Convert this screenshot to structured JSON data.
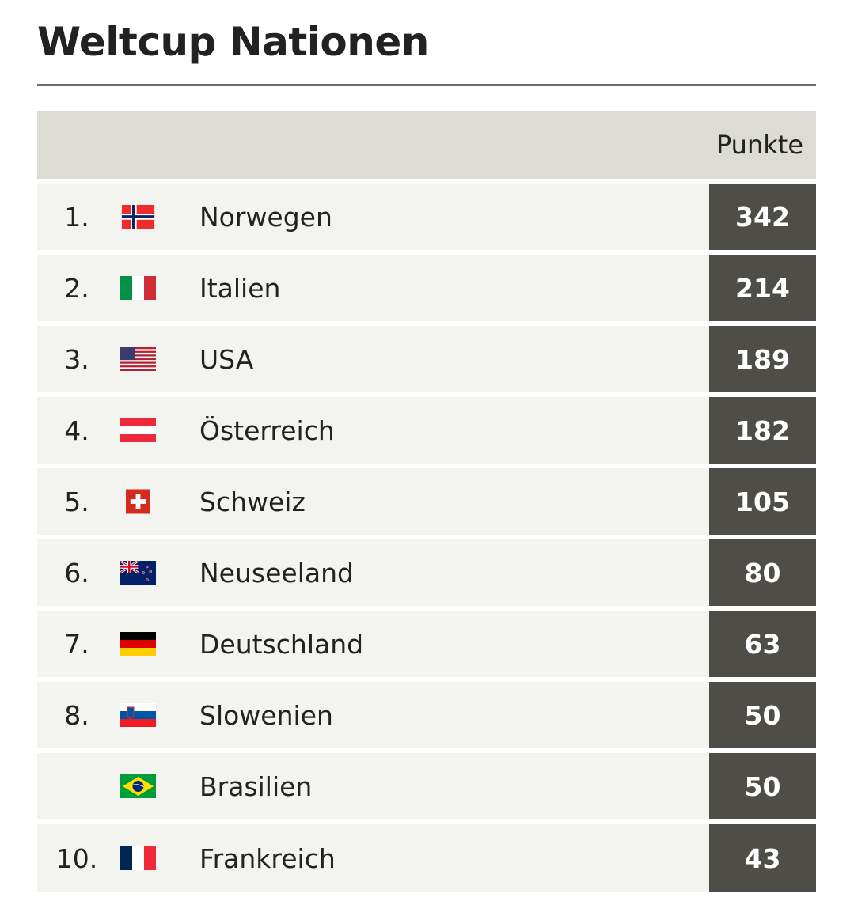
{
  "title": "Weltcup Nationen",
  "columns": {
    "points": "Punkte"
  },
  "rows": [
    {
      "rank": "1.",
      "flag": "norway-flag-icon",
      "name": "Norwegen",
      "points": "342"
    },
    {
      "rank": "2.",
      "flag": "italy-flag-icon",
      "name": "Italien",
      "points": "214"
    },
    {
      "rank": "3.",
      "flag": "usa-flag-icon",
      "name": "USA",
      "points": "189"
    },
    {
      "rank": "4.",
      "flag": "austria-flag-icon",
      "name": "Österreich",
      "points": "182"
    },
    {
      "rank": "5.",
      "flag": "switzerland-flag-icon",
      "name": "Schweiz",
      "points": "105"
    },
    {
      "rank": "6.",
      "flag": "new-zealand-flag-icon",
      "name": "Neuseeland",
      "points": "80"
    },
    {
      "rank": "7.",
      "flag": "germany-flag-icon",
      "name": "Deutschland",
      "points": "63"
    },
    {
      "rank": "8.",
      "flag": "slovenia-flag-icon",
      "name": "Slowenien",
      "points": "50"
    },
    {
      "rank": "",
      "flag": "brazil-flag-icon",
      "name": "Brasilien",
      "points": "50"
    },
    {
      "rank": "10.",
      "flag": "france-flag-icon",
      "name": "Frankreich",
      "points": "43"
    }
  ],
  "colors": {
    "header_bg": "#dcdbd4",
    "row_bg": "#f3f3ef",
    "points_bg": "#4f4d47",
    "rule": "#6e6c66"
  }
}
